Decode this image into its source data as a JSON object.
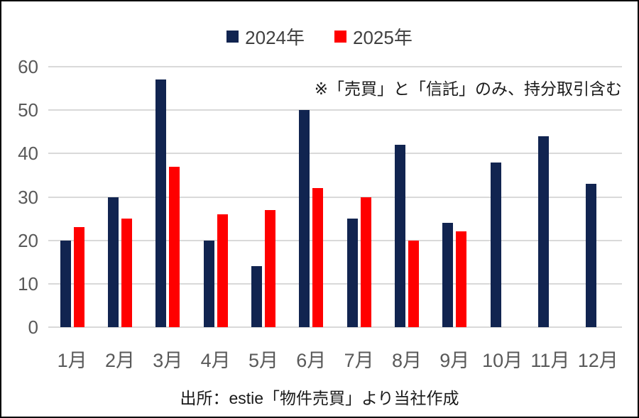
{
  "chart_data": {
    "type": "bar",
    "title": "",
    "categories": [
      "1月",
      "2月",
      "3月",
      "4月",
      "5月",
      "6月",
      "7月",
      "8月",
      "9月",
      "10月",
      "11月",
      "12月"
    ],
    "series": [
      {
        "name": "2024年",
        "color": "#112450",
        "values": [
          20,
          30,
          57,
          20,
          14,
          50,
          25,
          42,
          24,
          38,
          44,
          33
        ]
      },
      {
        "name": "2025年",
        "color": "#ff0000",
        "values": [
          23,
          25,
          37,
          26,
          27,
          32,
          30,
          20,
          22,
          null,
          null,
          null
        ]
      }
    ],
    "xlabel": "",
    "ylabel": "",
    "ylim": [
      0,
      60
    ],
    "yticks": [
      0,
      10,
      20,
      30,
      40,
      50,
      60
    ],
    "grid": "horizontal",
    "legend_position": "top-center",
    "annotation": "※「売買」と「信託」のみ、持分取引含む",
    "source_note": "出所：estie「物件売買」より当社作成"
  },
  "colors": {
    "bar_2024": "#112450",
    "bar_2025": "#ff0000",
    "gridline": "#d9d9d9",
    "axis_text": "#595959",
    "legend_text": "#404040",
    "note_text": "#1a1a1a",
    "frame_border": "#000000",
    "background": "#ffffff"
  }
}
